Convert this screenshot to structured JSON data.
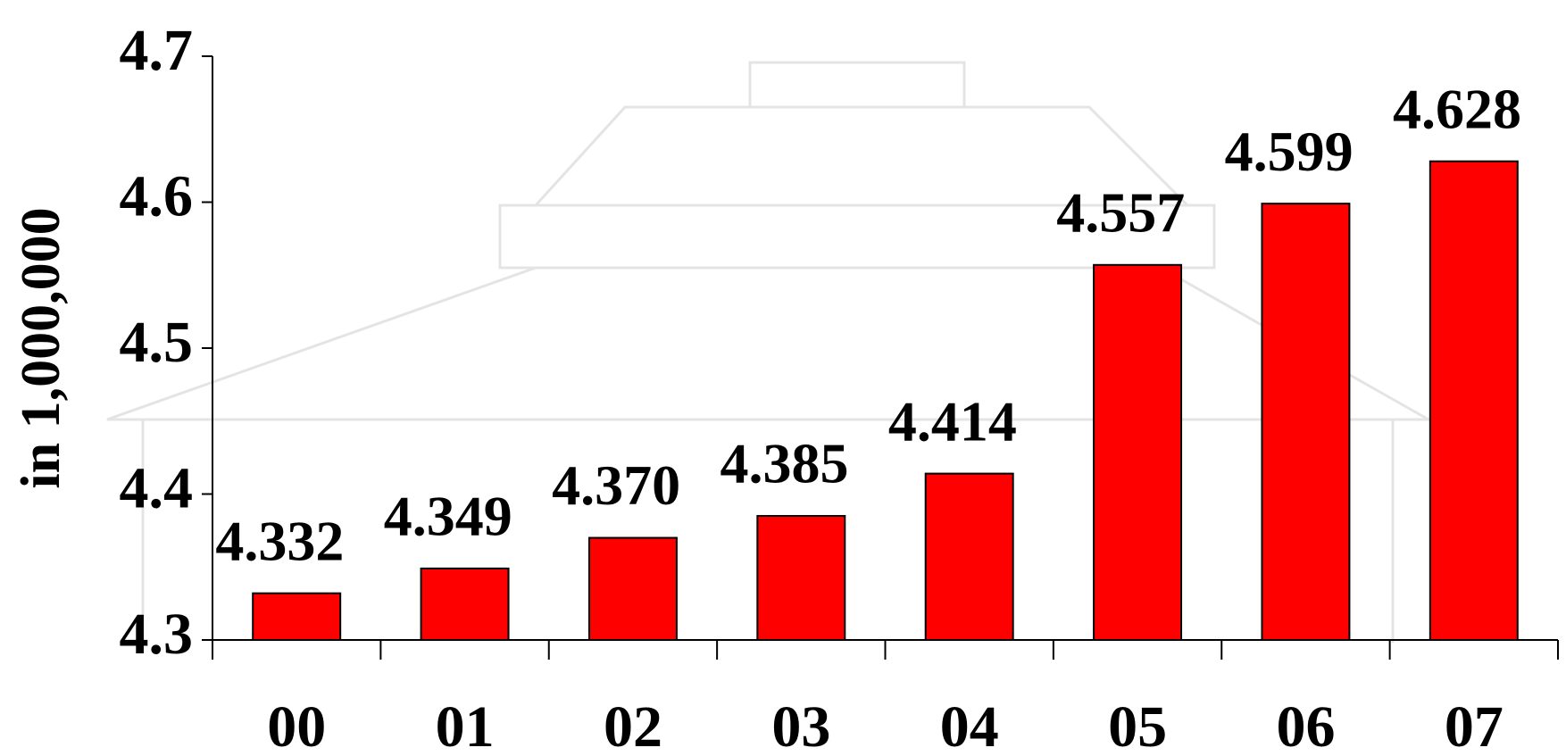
{
  "chart_data": {
    "type": "bar",
    "y_label": "in 1,000,000",
    "categories": [
      "00",
      "01",
      "02",
      "03",
      "04",
      "05",
      "06",
      "07"
    ],
    "values": [
      4.332,
      4.349,
      4.37,
      4.385,
      4.414,
      4.557,
      4.599,
      4.628
    ],
    "value_labels": [
      "4.332",
      "4.349",
      "4.370",
      "4.385",
      "4.414",
      "4.557",
      "4.599",
      "4.628"
    ],
    "color": "#ff0000",
    "ylim": [
      4.3,
      4.7
    ],
    "yticks": [
      4.3,
      4.4,
      4.5,
      4.6,
      4.7
    ],
    "grid": false
  }
}
